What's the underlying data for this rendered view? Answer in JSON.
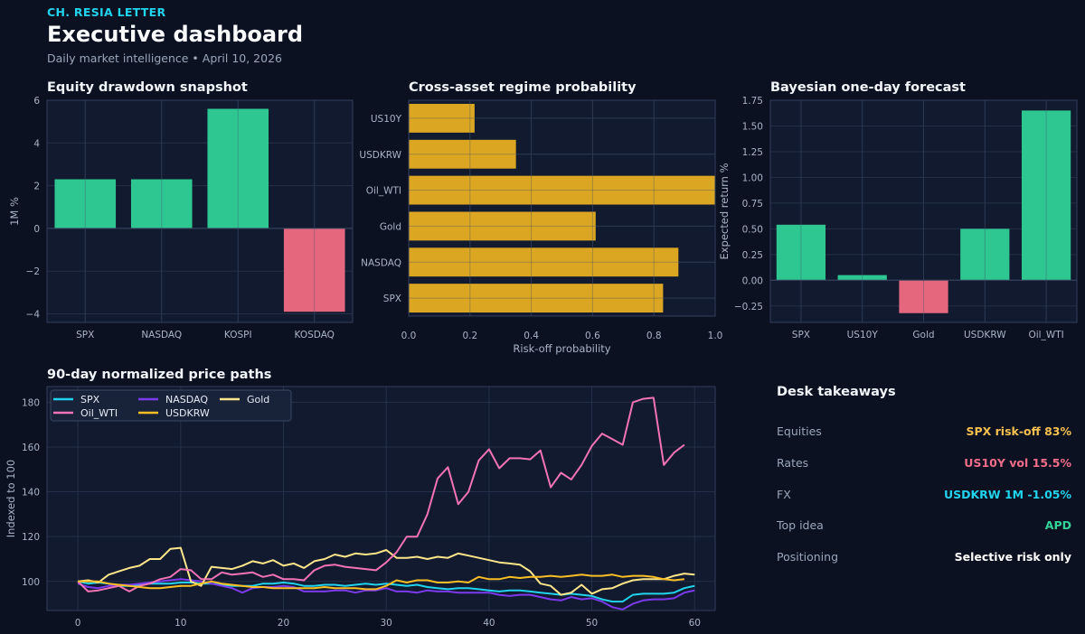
{
  "header": {
    "brand": "CH. RESIA LETTER",
    "title": "Executive dashboard",
    "subtitle": "Daily market intelligence • April 10, 2026"
  },
  "colors": {
    "positive": "#2ec792",
    "negative": "#e5677e",
    "amber": "#dba622",
    "panel": "#111a2e",
    "grid": "#243049"
  },
  "chart_data": [
    {
      "id": "drawdown",
      "type": "bar",
      "title": "Equity drawdown snapshot",
      "categories": [
        "SPX",
        "NASDAQ",
        "KOSPI",
        "KOSDAQ"
      ],
      "values": [
        2.3,
        2.3,
        5.6,
        -3.9
      ],
      "ylabel": "1M %",
      "xlabel": "",
      "ylim": [
        -4.4,
        6
      ],
      "yticks": [
        -4,
        -2,
        0,
        2,
        4,
        6
      ],
      "ytick_labels": [
        "−4",
        "−2",
        "0",
        "2",
        "4",
        "6"
      ],
      "grid": true
    },
    {
      "id": "regime",
      "type": "bar",
      "orientation": "horizontal",
      "title": "Cross-asset regime probability",
      "categories": [
        "SPX",
        "NASDAQ",
        "Gold",
        "Oil_WTI",
        "USDKRW",
        "US10Y"
      ],
      "values": [
        0.83,
        0.88,
        0.61,
        1.0,
        0.35,
        0.215
      ],
      "xlabel": "Risk-off probability",
      "ylabel": "",
      "xlim": [
        0,
        1
      ],
      "xticks": [
        0,
        0.2,
        0.4,
        0.6,
        0.8,
        1.0
      ],
      "xtick_labels": [
        "0.0",
        "0.2",
        "0.4",
        "0.6",
        "0.8",
        "1.0"
      ],
      "grid": true
    },
    {
      "id": "forecast",
      "type": "bar",
      "title": "Bayesian one-day forecast",
      "categories": [
        "SPX",
        "US10Y",
        "Gold",
        "USDKRW",
        "Oil_WTI"
      ],
      "values": [
        0.54,
        0.05,
        -0.32,
        0.5,
        1.65
      ],
      "ylabel": "Expected return %",
      "xlabel": "",
      "ylim": [
        -0.41,
        1.75
      ],
      "yticks": [
        -0.25,
        0,
        0.25,
        0.5,
        0.75,
        1.0,
        1.25,
        1.5,
        1.75
      ],
      "ytick_labels": [
        "−0.25",
        "0.00",
        "0.25",
        "0.50",
        "0.75",
        "1.00",
        "1.25",
        "1.50",
        "1.75"
      ],
      "grid": true
    },
    {
      "id": "paths",
      "type": "line",
      "title": "90-day normalized price paths",
      "ylabel": "Indexed to 100",
      "xlabel": "",
      "xlim": [
        -3,
        62
      ],
      "ylim": [
        87,
        187
      ],
      "xticks": [
        0,
        10,
        20,
        30,
        40,
        50,
        60
      ],
      "yticks": [
        100,
        120,
        140,
        160,
        180
      ],
      "legend": "top-left",
      "grid": true,
      "series": [
        {
          "name": "SPX",
          "color": "#22d3ee",
          "values": [
            100,
            99,
            99.5,
            99,
            98,
            98,
            98.5,
            99,
            99,
            99,
            99.5,
            99.5,
            99,
            99,
            98.5,
            98,
            98,
            98,
            99,
            99,
            99.5,
            99,
            98,
            98,
            98.5,
            98.5,
            98,
            98.5,
            99,
            98.5,
            99,
            98.5,
            98,
            98.5,
            97.5,
            97,
            96.5,
            97,
            97,
            96.5,
            96,
            95.5,
            96,
            96,
            95.5,
            95,
            94.5,
            94,
            94.5,
            94,
            93.5,
            92,
            91,
            91,
            94,
            94.5,
            94.5,
            94.5,
            95,
            97,
            98
          ]
        },
        {
          "name": "NASDAQ",
          "color": "#7c3aed",
          "values": [
            99,
            97.5,
            97,
            98,
            98.5,
            98.5,
            99,
            99.5,
            100,
            100.5,
            101,
            100.5,
            100,
            99,
            98,
            97,
            95,
            97,
            97.5,
            97.5,
            98,
            97.5,
            95.5,
            95.5,
            95.5,
            96,
            96,
            95,
            96,
            96,
            97,
            95.5,
            95.5,
            95,
            96,
            95.5,
            95.5,
            95,
            95,
            95,
            95,
            94,
            93.5,
            94,
            94,
            93,
            92,
            91.5,
            93,
            92,
            92.5,
            91,
            88.5,
            87.5,
            90,
            91.5,
            92,
            92,
            92.5,
            95,
            96
          ]
        },
        {
          "name": "Gold",
          "color": "#fde68a",
          "values": [
            100,
            100.5,
            99.5,
            103,
            104.5,
            106,
            107,
            110,
            110,
            114.5,
            115,
            100,
            98,
            106.5,
            106,
            105.5,
            107,
            109,
            108,
            109.5,
            107,
            108,
            106,
            109,
            110,
            112,
            111,
            112.5,
            112,
            112.5,
            114,
            110.5,
            110.5,
            111,
            110,
            111,
            110.5,
            112.5,
            111.5,
            110.5,
            109.5,
            108.5,
            108,
            107.5,
            104.5,
            99,
            98,
            94,
            95,
            98.5,
            94.5,
            96.5,
            97,
            99,
            100.5,
            101,
            101,
            101,
            102.5,
            103.5,
            103
          ]
        },
        {
          "name": "Oil_WTI",
          "color": "#f472b6",
          "values": [
            100,
            95.5,
            96,
            97,
            98,
            95.5,
            98,
            99,
            101,
            102,
            105.5,
            105,
            101,
            101,
            104,
            103,
            103.5,
            104,
            102,
            103,
            101,
            101,
            100.5,
            105,
            107,
            107.5,
            106.5,
            106,
            105.5,
            105,
            108.5,
            113,
            120,
            120,
            130,
            146,
            151,
            134.5,
            140,
            154,
            159,
            150.5,
            155,
            155,
            154.5,
            158.5,
            142,
            148.5,
            145.5,
            152,
            160.5,
            166,
            163.5,
            161,
            180,
            181.5,
            182,
            152,
            157.5,
            161
          ]
        },
        {
          "name": "USDKRW",
          "color": "#fbbf24",
          "values": [
            100,
            100,
            100,
            99,
            98.5,
            98,
            97.5,
            97,
            97,
            97.5,
            98,
            98,
            99,
            100,
            99,
            98.5,
            98,
            97.5,
            97.5,
            97,
            97,
            97,
            97,
            97,
            97.5,
            97,
            97,
            97,
            96.5,
            96.5,
            98,
            100.5,
            99.5,
            100.5,
            100.5,
            99.5,
            99.5,
            100,
            99.5,
            102,
            101,
            101,
            102,
            101.5,
            102,
            102,
            102.5,
            102,
            102.5,
            103,
            102.5,
            102.5,
            103,
            102,
            102.5,
            102.5,
            102,
            101,
            100.5,
            101
          ]
        }
      ]
    }
  ],
  "takeaways": {
    "title": "Desk takeaways",
    "rows": [
      {
        "label": "Equities",
        "value": "SPX risk-off 83%",
        "color": "#f6c04f"
      },
      {
        "label": "Rates",
        "value": "US10Y vol 15.5%",
        "color": "#f26d8a"
      },
      {
        "label": "FX",
        "value": "USDKRW 1M -1.05%",
        "color": "#22d3ee"
      },
      {
        "label": "Top idea",
        "value": "APD",
        "color": "#34d399"
      },
      {
        "label": "Positioning",
        "value": "Selective risk only",
        "color": "#ffffff"
      }
    ]
  }
}
